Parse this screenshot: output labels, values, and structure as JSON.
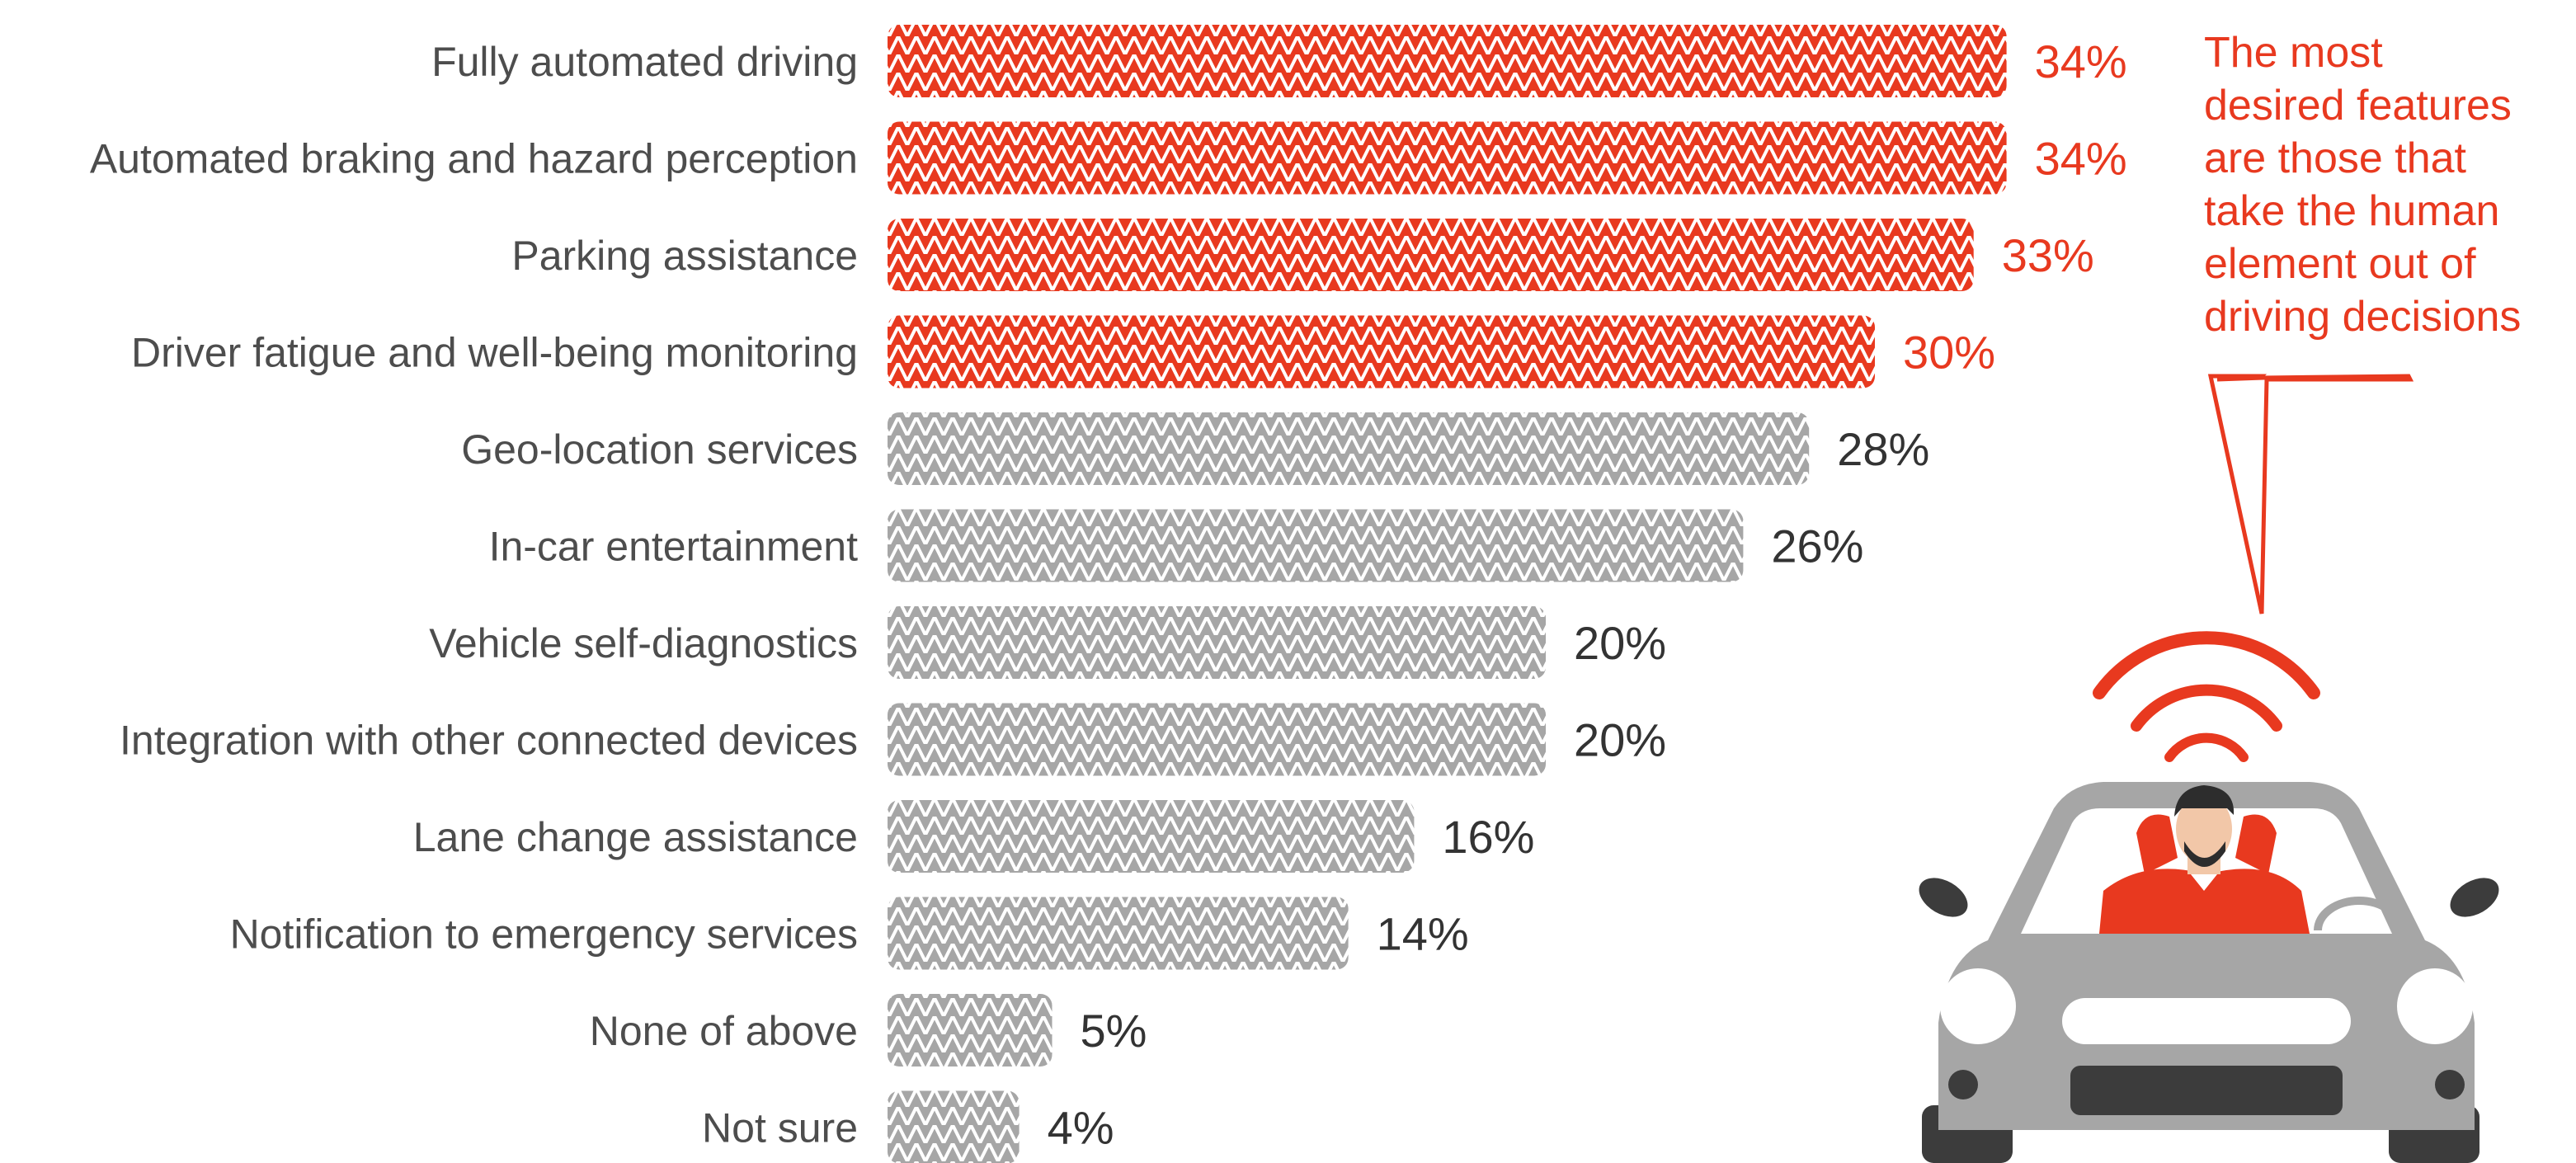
{
  "chart_data": {
    "type": "bar",
    "orientation": "horizontal",
    "categories": [
      "Fully automated driving",
      "Automated braking and hazard perception",
      "Parking assistance",
      "Driver fatigue and well-being monitoring",
      "Geo-location services",
      "In-car entertainment",
      "Vehicle self-diagnostics",
      "Integration with other connected devices",
      "Lane change assistance",
      "Notification to emergency services",
      "None of above",
      "Not sure"
    ],
    "values": [
      34,
      34,
      33,
      30,
      28,
      26,
      20,
      20,
      16,
      14,
      5,
      4
    ],
    "value_labels": [
      "34%",
      "34%",
      "33%",
      "30%",
      "28%",
      "26%",
      "20%",
      "20%",
      "16%",
      "14%",
      "5%",
      "4%"
    ],
    "highlighted": [
      true,
      true,
      true,
      true,
      false,
      false,
      false,
      false,
      false,
      false,
      false,
      false
    ],
    "grid": false
  },
  "annotation": {
    "lines": [
      "The most",
      "desired features",
      "are those that",
      "take the human",
      "element out of",
      "driving decisions"
    ]
  },
  "colors": {
    "highlight": "#e8391f",
    "muted": "#a6a6a6",
    "label_text": "#4d4d4d",
    "value_text": "#333333"
  },
  "illustration": {
    "icon": "car-with-driver-and-signal-icon"
  }
}
